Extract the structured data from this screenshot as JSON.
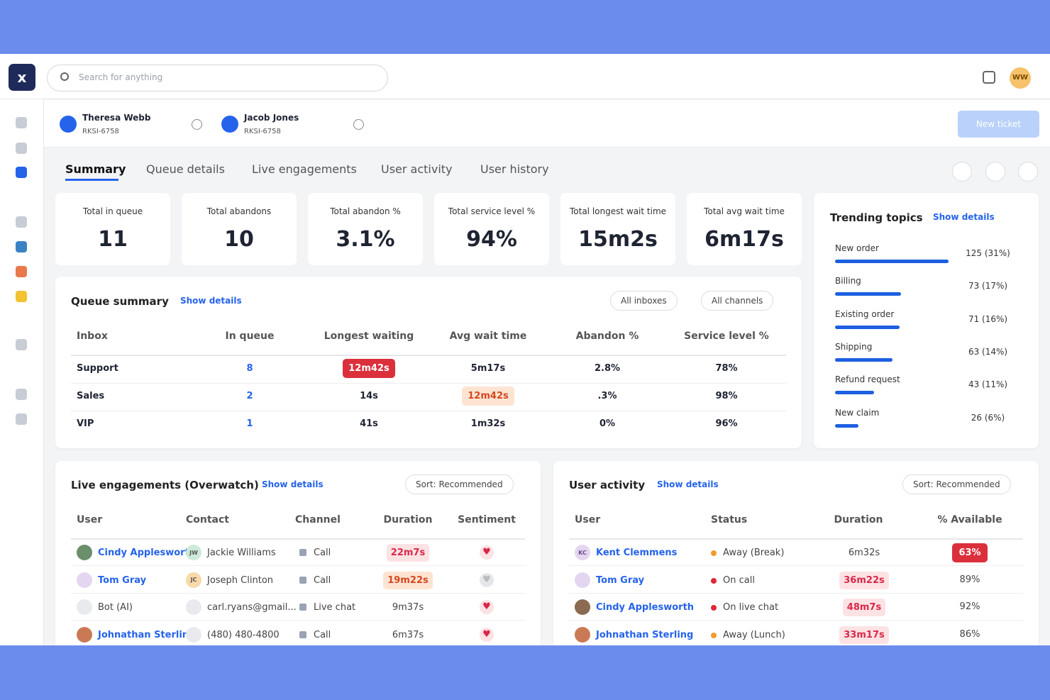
{
  "search": {
    "placeholder": "Search for anything"
  },
  "avatar": "WW",
  "open_tickets": [
    {
      "name": "Theresa Webb",
      "id": "RKSI-6758"
    },
    {
      "name": "Jacob Jones",
      "id": "RKSI-6758"
    }
  ],
  "new_ticket": "New ticket",
  "tabs": [
    "Summary",
    "Queue details",
    "Live engagements",
    "User activity",
    "User history"
  ],
  "stats": [
    {
      "label": "Total in queue",
      "value": "11"
    },
    {
      "label": "Total abandons",
      "value": "10"
    },
    {
      "label": "Total abandon %",
      "value": "3.1%"
    },
    {
      "label": "Total service level %",
      "value": "94%"
    },
    {
      "label": "Total longest wait time",
      "value": "15m2s"
    },
    {
      "label": "Total avg wait time",
      "value": "6m17s"
    }
  ],
  "queue_summary": {
    "title": "Queue summary",
    "link": "Show details",
    "filters": [
      "All inboxes",
      "All channels"
    ],
    "columns": [
      "Inbox",
      "In queue",
      "Longest waiting",
      "Avg wait time",
      "Abandon %",
      "Service level %"
    ],
    "rows": [
      [
        "Support",
        "8",
        "12m42s",
        "5m17s",
        "2.8%",
        "78%"
      ],
      [
        "Sales",
        "2",
        "14s",
        "12m42s",
        ".3%",
        "98%"
      ],
      [
        "VIP",
        "1",
        "41s",
        "1m32s",
        "0%",
        "96%"
      ]
    ]
  },
  "trending": {
    "title": "Trending topics",
    "link": "Show details",
    "topics": [
      {
        "name": "New order",
        "value": 125,
        "value_label": "125 (31%)"
      },
      {
        "name": "Billing",
        "value": 73,
        "value_label": "73 (17%)"
      },
      {
        "name": "Existing order",
        "value": 71,
        "value_label": "71 (16%)"
      },
      {
        "name": "Shipping",
        "value": 63,
        "value_label": "63 (14%)"
      },
      {
        "name": "Refund request",
        "value": 43,
        "value_label": "43 (11%)"
      },
      {
        "name": "New claim",
        "value": 26,
        "value_label": "26 (6%)"
      }
    ]
  },
  "live_engagements": {
    "title": "Live engagements (Overwatch)",
    "link": "Show details",
    "sort": "Sort: Recommended",
    "columns": [
      "User",
      "Contact",
      "Channel",
      "Duration",
      "Sentiment"
    ],
    "rows": [
      {
        "user": "Cindy Appleswort.",
        "contact_initials": "JW",
        "contact": "Jackie Williams",
        "channel": "Call",
        "duration": "22m7s"
      },
      {
        "user": "Tom Gray",
        "contact_initials": "JC",
        "contact": "Joseph Clinton",
        "channel": "Call",
        "duration": "19m22s"
      },
      {
        "user": "Bot (AI)",
        "contact": "carl.ryans@gmail...",
        "channel": "Live chat",
        "duration": "9m37s"
      },
      {
        "user": "Johnathan Sterling",
        "contact": "(480) 480-4800",
        "channel": "Call",
        "duration": "6m37s"
      }
    ]
  },
  "user_activity": {
    "title": "User activity",
    "link": "Show details",
    "sort": "Sort: Recommended",
    "columns": [
      "User",
      "Status",
      "Duration",
      "% Available"
    ],
    "rows": [
      {
        "initials": "KC",
        "user": "Kent Clemmens",
        "status": "Away (Break)",
        "duration": "6m32s",
        "available": "63%"
      },
      {
        "user": "Tom Gray",
        "status": "On call",
        "duration": "36m22s",
        "available": "89%"
      },
      {
        "user": "Cindy Applesworth",
        "status": "On live chat",
        "duration": "48m7s",
        "available": "92%"
      },
      {
        "user": "Johnathan Sterling",
        "status": "Away (Lunch)",
        "duration": "33m17s",
        "available": "86%"
      }
    ]
  }
}
